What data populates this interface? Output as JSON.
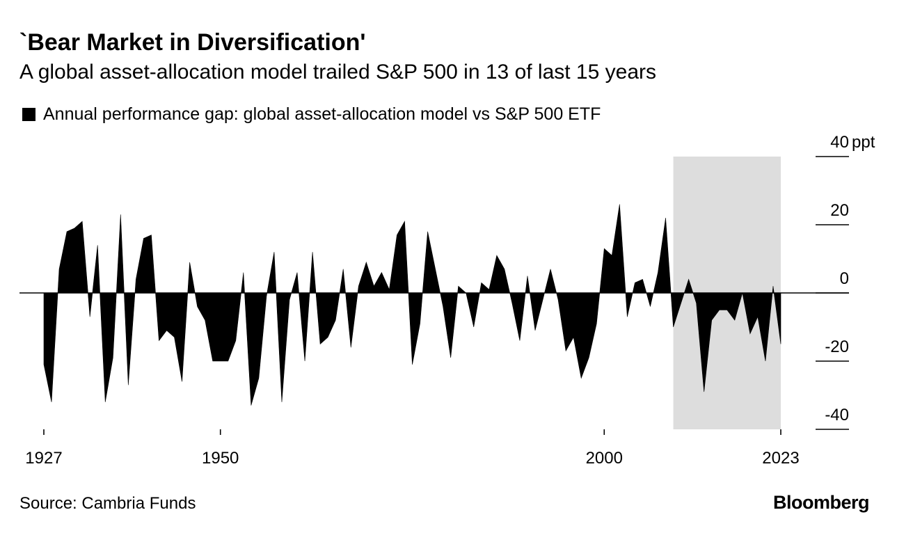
{
  "chart_data": {
    "type": "area",
    "title": "`Bear Market in Diversification'",
    "subtitle": "A global asset-allocation model trailed S&P 500 in 13 of last 15 years",
    "legend": {
      "label": "Annual performance gap: global asset-allocation model vs S&P 500 ETF",
      "color": "#000000",
      "placement": "top-left"
    },
    "y_axis": {
      "unit": "ppt",
      "ticks": [
        40,
        20,
        0,
        -20,
        -40
      ],
      "tick_labels": [
        "40",
        "20",
        "0",
        "-20",
        "-40"
      ],
      "range": [
        -40,
        40
      ],
      "side": "right"
    },
    "x_axis": {
      "ticks": [
        1927,
        1950,
        2000,
        2023
      ],
      "tick_labels": [
        "1927",
        "1950",
        "2000",
        "2023"
      ],
      "range": [
        1927,
        2023
      ]
    },
    "highlight": {
      "start_year": 2009,
      "end_year": 2023,
      "color": "#dddddd"
    },
    "series": [
      {
        "name": "Annual performance gap",
        "color": "#000000",
        "points": [
          [
            1927,
            -21
          ],
          [
            1928,
            -32
          ],
          [
            1929,
            7
          ],
          [
            1930,
            18
          ],
          [
            1931,
            19
          ],
          [
            1932,
            21
          ],
          [
            1933,
            -7
          ],
          [
            1934,
            14
          ],
          [
            1935,
            -32
          ],
          [
            1936,
            -19
          ],
          [
            1937,
            23
          ],
          [
            1938,
            -27
          ],
          [
            1939,
            4
          ],
          [
            1940,
            16
          ],
          [
            1941,
            17
          ],
          [
            1942,
            -14
          ],
          [
            1943,
            -11
          ],
          [
            1944,
            -13
          ],
          [
            1945,
            -26
          ],
          [
            1946,
            9
          ],
          [
            1947,
            -4
          ],
          [
            1948,
            -8
          ],
          [
            1949,
            -20
          ],
          [
            1950,
            -20
          ],
          [
            1951,
            -20
          ],
          [
            1952,
            -14
          ],
          [
            1953,
            6
          ],
          [
            1954,
            -33
          ],
          [
            1955,
            -25
          ],
          [
            1956,
            -1
          ],
          [
            1957,
            12
          ],
          [
            1958,
            -32
          ],
          [
            1959,
            -2
          ],
          [
            1960,
            6
          ],
          [
            1961,
            -20
          ],
          [
            1962,
            12
          ],
          [
            1963,
            -15
          ],
          [
            1964,
            -13
          ],
          [
            1965,
            -8
          ],
          [
            1966,
            7
          ],
          [
            1967,
            -16
          ],
          [
            1968,
            2
          ],
          [
            1969,
            9
          ],
          [
            1970,
            2
          ],
          [
            1971,
            6
          ],
          [
            1972,
            1
          ],
          [
            1973,
            17
          ],
          [
            1974,
            21
          ],
          [
            1975,
            -21
          ],
          [
            1976,
            -9
          ],
          [
            1977,
            18
          ],
          [
            1978,
            7
          ],
          [
            1979,
            -4
          ],
          [
            1980,
            -19
          ],
          [
            1981,
            2
          ],
          [
            1982,
            0
          ],
          [
            1983,
            -10
          ],
          [
            1984,
            3
          ],
          [
            1985,
            1
          ],
          [
            1986,
            11
          ],
          [
            1987,
            7
          ],
          [
            1988,
            -3
          ],
          [
            1989,
            -14
          ],
          [
            1990,
            5
          ],
          [
            1991,
            -11
          ],
          [
            1992,
            -2
          ],
          [
            1993,
            7
          ],
          [
            1994,
            -2
          ],
          [
            1995,
            -17
          ],
          [
            1996,
            -13
          ],
          [
            1997,
            -25
          ],
          [
            1998,
            -19
          ],
          [
            1999,
            -9
          ],
          [
            2000,
            13
          ],
          [
            2001,
            11
          ],
          [
            2002,
            26
          ],
          [
            2003,
            -7
          ],
          [
            2004,
            3
          ],
          [
            2005,
            4
          ],
          [
            2006,
            -4
          ],
          [
            2007,
            6
          ],
          [
            2008,
            22
          ],
          [
            2009,
            -10
          ],
          [
            2010,
            -3
          ],
          [
            2011,
            4
          ],
          [
            2012,
            -3
          ],
          [
            2013,
            -29
          ],
          [
            2014,
            -8
          ],
          [
            2015,
            -5
          ],
          [
            2016,
            -5
          ],
          [
            2017,
            -8
          ],
          [
            2018,
            0
          ],
          [
            2019,
            -12
          ],
          [
            2020,
            -7
          ],
          [
            2021,
            -20
          ],
          [
            2022,
            2
          ],
          [
            2023,
            -15
          ]
        ]
      }
    ]
  },
  "source": "Source: Cambria Funds",
  "brand": "Bloomberg"
}
